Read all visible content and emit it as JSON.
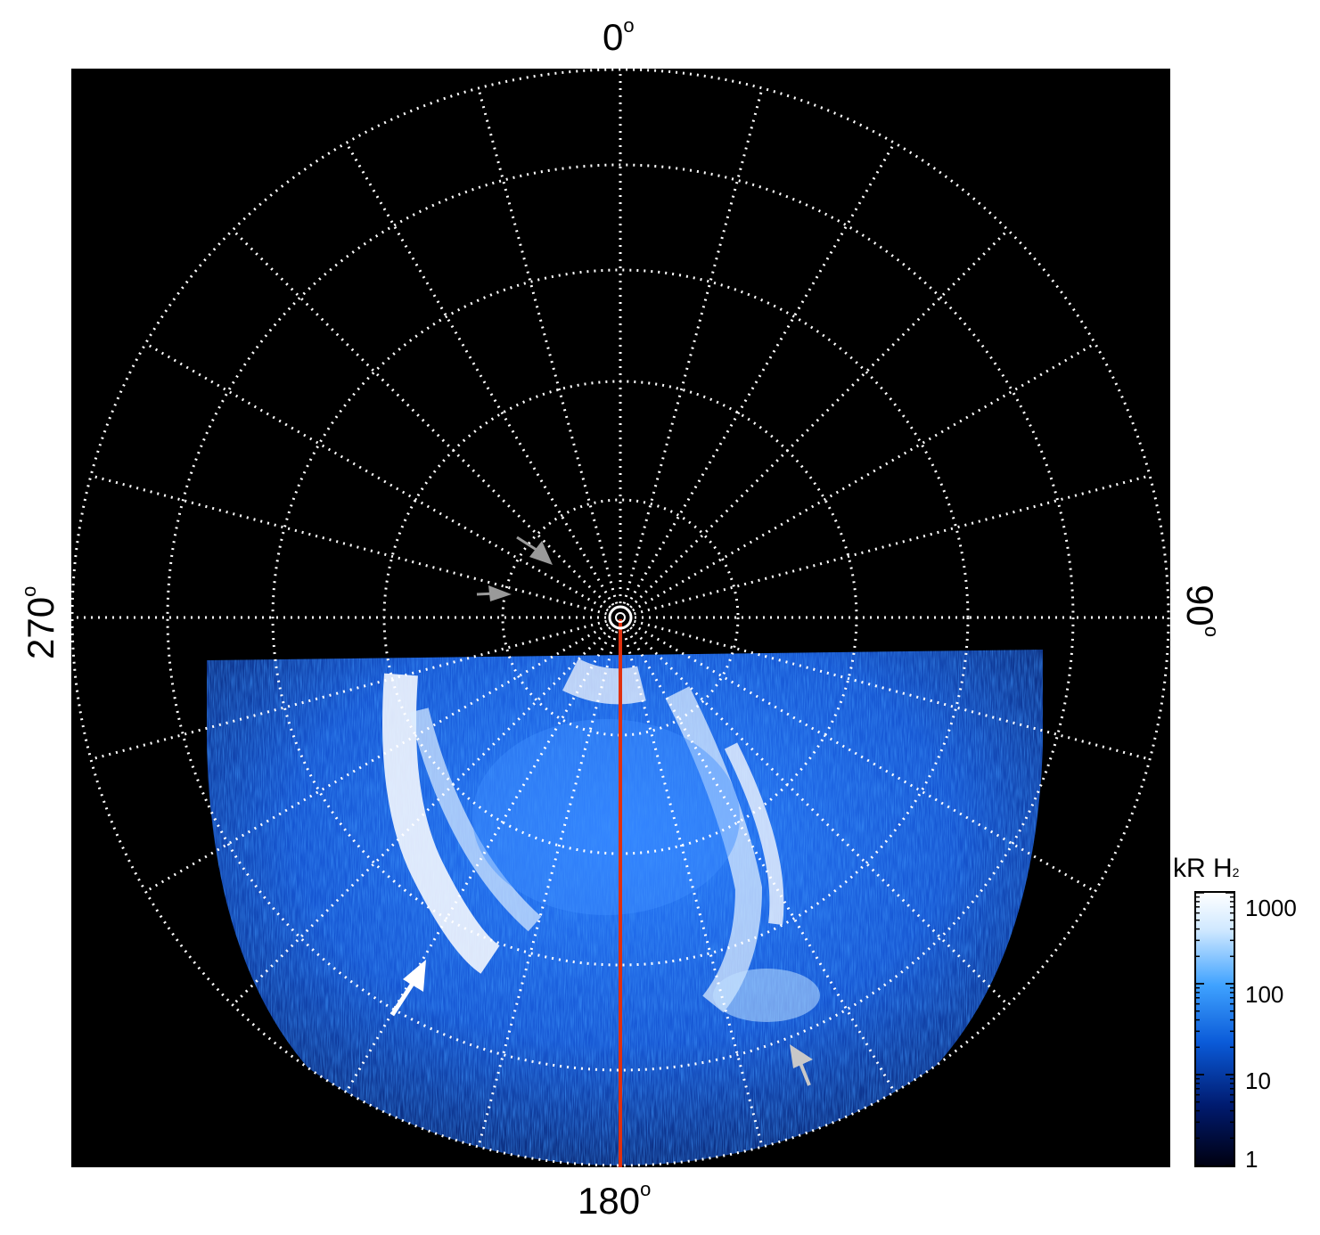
{
  "axis_labels": {
    "top": "0",
    "right": "90",
    "bottom": "180",
    "left": "270",
    "degree_symbol": "o"
  },
  "colorbar": {
    "title": "kR H",
    "title_subscript": "2",
    "ticks": [
      "1000",
      "100",
      "10",
      "1"
    ],
    "colors": [
      "#000010",
      "#001a6e",
      "#0a5ad8",
      "#3fa2ff",
      "#cfe8ff",
      "#ffffff"
    ]
  },
  "colors": {
    "background": "#000000",
    "grid": "#ffffff",
    "meridian_line": "#e0300e",
    "aurora": "#1c6cff"
  },
  "annotations": [
    {
      "name": "arrow-gray-upper",
      "color": "#9a9a9a"
    },
    {
      "name": "arrow-gray-left",
      "color": "#9a9a9a"
    },
    {
      "name": "arrow-white-lower-left",
      "color": "#ffffff"
    },
    {
      "name": "arrow-gray-lower-right",
      "color": "#c8c8c8"
    }
  ]
}
